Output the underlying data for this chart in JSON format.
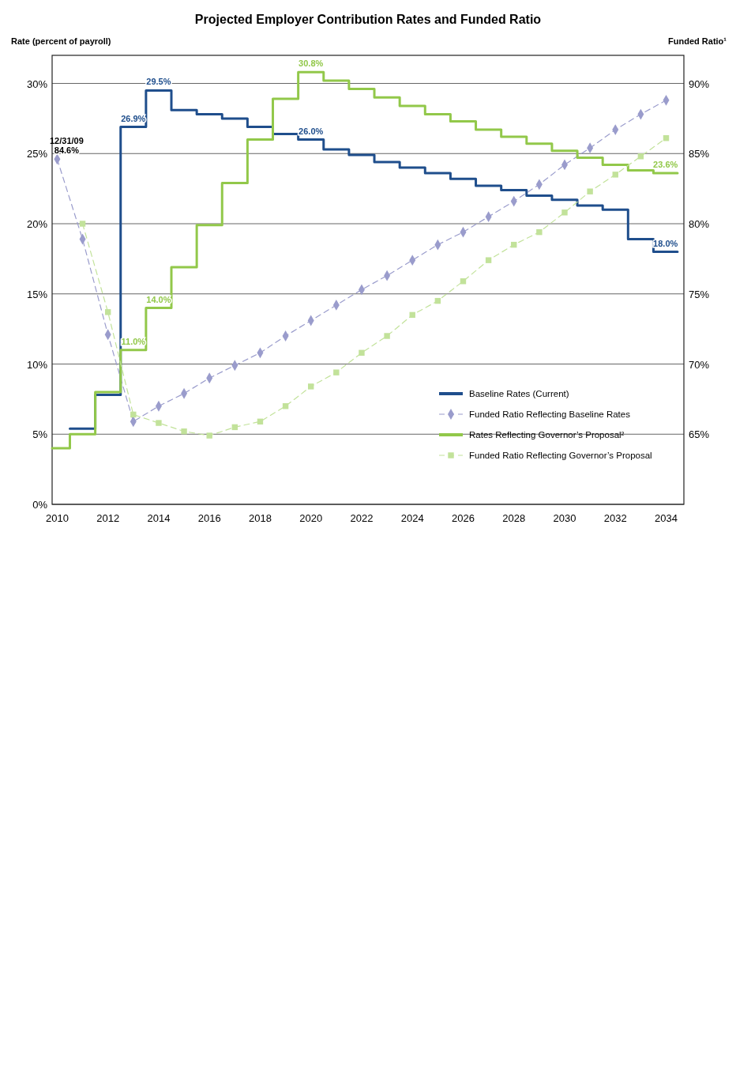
{
  "chart_data": {
    "type": "step",
    "title": "Projected Employer Contribution Rates and Funded Ratio",
    "ylabel": "Rate (percent of payroll)",
    "y2label": "Funded Ratio¹",
    "xlim": [
      2009.8,
      2034.7
    ],
    "xticks": [
      2010,
      2012,
      2014,
      2016,
      2018,
      2020,
      2022,
      2024,
      2026,
      2028,
      2030,
      2032,
      2034
    ],
    "ylim": [
      0,
      32
    ],
    "yticks": [
      {
        "value": 0,
        "label": "0%"
      },
      {
        "value": 5,
        "label": "5%"
      },
      {
        "value": 10,
        "label": "10%"
      },
      {
        "value": 15,
        "label": "15%"
      },
      {
        "value": 20,
        "label": "20%"
      },
      {
        "value": 25,
        "label": "25%"
      },
      {
        "value": 30,
        "label": "30%"
      }
    ],
    "y2lim": [
      60,
      92
    ],
    "y2ticks": [
      {
        "value": 65,
        "label": "65%"
      },
      {
        "value": 70,
        "label": "70%"
      },
      {
        "value": 75,
        "label": "75%"
      },
      {
        "value": 80,
        "label": "80%"
      },
      {
        "value": 85,
        "label": "85%"
      },
      {
        "value": 90,
        "label": "90%"
      }
    ],
    "grid": "y",
    "legend": "bottom right",
    "annotations": [
      {
        "text": "12/31/09",
        "x": 2010,
        "y": 24.6
      }
    ],
    "series": [
      {
        "name": "Baseline Rates (Current)",
        "color": "#1f4e8c",
        "line_style": "solid",
        "x": [
          2010.5,
          2011.5,
          2012.5,
          2013.5,
          2014.5,
          2015.5,
          2016.5,
          2017.5,
          2018.5,
          2019.5,
          2020.5,
          2021.5,
          2022.5,
          2023.5,
          2024.5,
          2025.5,
          2026.5,
          2027.5,
          2028.5,
          2029.5,
          2030.5,
          2031.5,
          2032.5,
          2033.5,
          2034.45
        ],
        "values": [
          5.4,
          7.8,
          26.9,
          29.5,
          28.1,
          27.8,
          27.5,
          26.9,
          26.4,
          26.0,
          25.3,
          24.9,
          24.4,
          24.0,
          23.6,
          23.2,
          22.7,
          22.4,
          22.0,
          21.7,
          21.3,
          21.0,
          18.9,
          18.0,
          18.0
        ],
        "value_labels": [
          null,
          null,
          "26.9%",
          "29.5%",
          null,
          null,
          null,
          null,
          null,
          "26.0%",
          null,
          null,
          null,
          null,
          null,
          null,
          null,
          null,
          null,
          null,
          null,
          null,
          null,
          "18.0%",
          null
        ]
      },
      {
        "name": "Funded Ratio Reflecting Baseline Rates",
        "type": "line",
        "axis": "y2",
        "color": "#9a9ccc",
        "line_style": "dashed",
        "marker": "diamond",
        "x": [
          2010,
          2011,
          2012,
          2013,
          2014,
          2015,
          2016,
          2017,
          2018,
          2019,
          2020,
          2021,
          2022,
          2023,
          2024,
          2025,
          2026,
          2027,
          2028,
          2029,
          2030,
          2031,
          2032,
          2033,
          2034
        ],
        "values": [
          84.6,
          78.9,
          72.1,
          65.9,
          67.0,
          67.9,
          69.0,
          69.9,
          70.8,
          72.0,
          73.1,
          74.2,
          75.3,
          76.3,
          77.4,
          78.5,
          79.4,
          80.5,
          81.6,
          82.8,
          84.2,
          85.4,
          86.7,
          87.8,
          88.8
        ],
        "value_labels": [
          "84.6%",
          null,
          null,
          null,
          null,
          null,
          null,
          null,
          null,
          null,
          null,
          null,
          null,
          null,
          null,
          null,
          null,
          null,
          null,
          null,
          null,
          null,
          null,
          null,
          null
        ]
      },
      {
        "name": "Rates Reflecting Governor’s Proposal²",
        "color": "#92c84a",
        "line_style": "solid",
        "x": [
          2009.8,
          2010.5,
          2011.5,
          2012.5,
          2013.5,
          2014.5,
          2015.5,
          2016.5,
          2017.5,
          2018.5,
          2019.5,
          2020.5,
          2021.5,
          2022.5,
          2023.5,
          2024.5,
          2025.5,
          2026.5,
          2027.5,
          2028.5,
          2029.5,
          2030.5,
          2031.5,
          2032.5,
          2033.5,
          2034.45
        ],
        "values": [
          4.0,
          5.0,
          8.0,
          11.0,
          14.0,
          16.9,
          19.9,
          22.9,
          26.0,
          28.9,
          30.8,
          30.2,
          29.6,
          29.0,
          28.4,
          27.8,
          27.3,
          26.7,
          26.2,
          25.7,
          25.2,
          24.7,
          24.2,
          23.8,
          23.6,
          23.6
        ],
        "value_labels": [
          null,
          null,
          null,
          "11.0%",
          "14.0%",
          null,
          null,
          null,
          null,
          null,
          "30.8%",
          null,
          null,
          null,
          null,
          null,
          null,
          null,
          null,
          null,
          null,
          null,
          null,
          null,
          "23.6%",
          null
        ]
      },
      {
        "name": "Funded Ratio Reflecting Governor’s Proposal",
        "type": "line",
        "axis": "y2",
        "color": "#c2e29a",
        "line_style": "dashed",
        "marker": "square",
        "x": [
          2011,
          2012,
          2013,
          2014,
          2015,
          2016,
          2017,
          2018,
          2019,
          2020,
          2021,
          2022,
          2023,
          2024,
          2025,
          2026,
          2027,
          2028,
          2029,
          2030,
          2031,
          2032,
          2033,
          2034
        ],
        "values": [
          80.0,
          73.7,
          66.4,
          65.8,
          65.2,
          64.9,
          65.5,
          65.9,
          67.0,
          68.4,
          69.4,
          70.8,
          72.0,
          73.5,
          74.5,
          75.9,
          77.4,
          78.5,
          79.4,
          80.8,
          82.3,
          83.5,
          84.8,
          86.1
        ]
      }
    ]
  }
}
